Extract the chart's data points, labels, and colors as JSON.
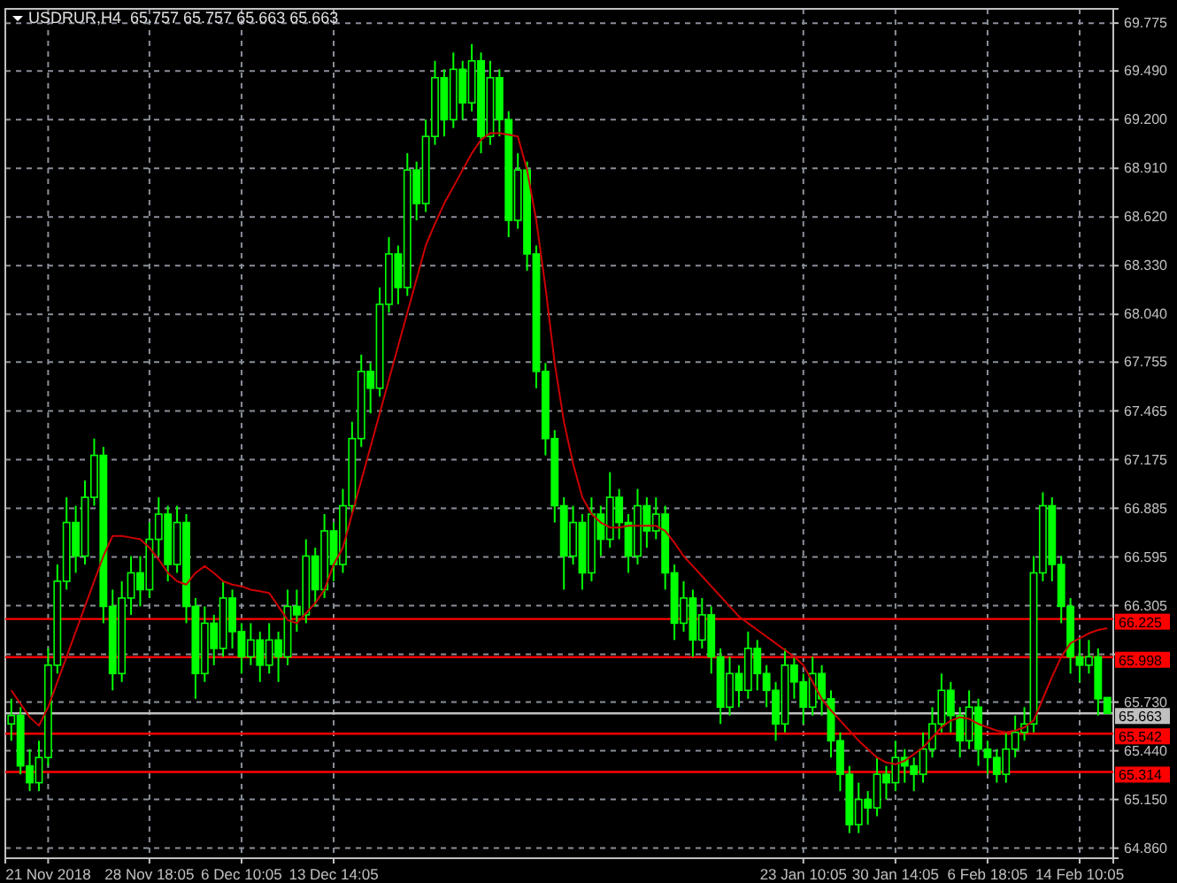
{
  "chart_data": {
    "type": "candlestick",
    "title": "USDRUR,H4  65.757 65.757 65.663 65.663",
    "color": "#00ff00",
    "grid": true,
    "categories": [
      null,
      null,
      null,
      null,
      "21 Nov 2018",
      null,
      null,
      null,
      null,
      null,
      null,
      null,
      null,
      null,
      null,
      "28 Nov 18:05",
      null,
      null,
      null,
      null,
      null,
      null,
      null,
      null,
      null,
      "6 Dec 10:05",
      null,
      null,
      null,
      null,
      null,
      null,
      null,
      null,
      null,
      "13 Dec 14:05",
      null,
      null,
      null,
      null,
      null,
      null,
      null,
      null,
      null,
      null,
      null,
      null,
      null,
      null,
      null,
      null,
      null,
      null,
      null,
      null,
      null,
      null,
      null,
      null,
      null,
      null,
      null,
      null,
      null,
      null,
      null,
      null,
      null,
      null,
      null,
      null,
      null,
      null,
      null,
      null,
      null,
      null,
      null,
      null,
      null,
      null,
      null,
      null,
      null,
      null,
      "23 Jan 10:05",
      null,
      null,
      null,
      null,
      null,
      null,
      null,
      null,
      null,
      "30 Jan 14:05",
      null,
      null,
      null,
      null,
      null,
      null,
      null,
      null,
      null,
      "6 Feb 18:05",
      null,
      null,
      null,
      null,
      null,
      null,
      null,
      null,
      null,
      "14 Feb 10:05",
      null,
      null,
      null
    ],
    "ohlc": [
      [
        65.6,
        65.75,
        65.5,
        65.65
      ],
      [
        65.65,
        65.7,
        65.3,
        65.35
      ],
      [
        65.35,
        65.45,
        65.2,
        65.25
      ],
      [
        65.25,
        65.5,
        65.2,
        65.4
      ],
      [
        65.4,
        66.05,
        65.35,
        65.95
      ],
      [
        65.95,
        66.55,
        65.9,
        66.45
      ],
      [
        66.45,
        66.95,
        66.4,
        66.8
      ],
      [
        66.8,
        66.9,
        66.5,
        66.6
      ],
      [
        66.6,
        67.05,
        66.55,
        66.95
      ],
      [
        66.95,
        67.3,
        66.9,
        67.2
      ],
      [
        67.2,
        67.25,
        66.2,
        66.3
      ],
      [
        66.3,
        66.4,
        65.8,
        65.9
      ],
      [
        65.9,
        66.45,
        65.85,
        66.35
      ],
      [
        66.35,
        66.6,
        66.25,
        66.5
      ],
      [
        66.5,
        66.6,
        66.3,
        66.4
      ],
      [
        66.4,
        66.8,
        66.35,
        66.7
      ],
      [
        66.7,
        66.95,
        66.6,
        66.85
      ],
      [
        66.85,
        66.9,
        66.45,
        66.55
      ],
      [
        66.55,
        66.9,
        66.5,
        66.8
      ],
      [
        66.8,
        66.85,
        66.2,
        66.3
      ],
      [
        66.3,
        66.35,
        65.75,
        65.9
      ],
      [
        65.9,
        66.3,
        65.85,
        66.2
      ],
      [
        66.2,
        66.25,
        65.95,
        66.05
      ],
      [
        66.05,
        66.45,
        66.0,
        66.35
      ],
      [
        66.35,
        66.4,
        66.05,
        66.15
      ],
      [
        66.15,
        66.2,
        65.9,
        66.0
      ],
      [
        66.0,
        66.2,
        65.95,
        66.1
      ],
      [
        66.1,
        66.15,
        65.85,
        65.95
      ],
      [
        65.95,
        66.2,
        65.9,
        66.1
      ],
      [
        66.1,
        66.15,
        65.85,
        66.0
      ],
      [
        66.0,
        66.4,
        65.95,
        66.3
      ],
      [
        66.3,
        66.4,
        66.15,
        66.25
      ],
      [
        66.25,
        66.7,
        66.2,
        66.6
      ],
      [
        66.6,
        66.65,
        66.3,
        66.4
      ],
      [
        66.4,
        66.85,
        66.35,
        66.75
      ],
      [
        66.75,
        66.8,
        66.45,
        66.55
      ],
      [
        66.55,
        67.0,
        66.5,
        66.9
      ],
      [
        66.9,
        67.4,
        66.85,
        67.3
      ],
      [
        67.3,
        67.8,
        67.25,
        67.7
      ],
      [
        67.7,
        67.75,
        67.45,
        67.6
      ],
      [
        67.6,
        68.2,
        67.55,
        68.1
      ],
      [
        68.1,
        68.5,
        68.05,
        68.4
      ],
      [
        68.4,
        68.45,
        68.1,
        68.2
      ],
      [
        68.2,
        69.0,
        68.15,
        68.9
      ],
      [
        68.9,
        68.95,
        68.6,
        68.7
      ],
      [
        68.7,
        69.2,
        68.65,
        69.1
      ],
      [
        69.1,
        69.55,
        69.05,
        69.45
      ],
      [
        69.45,
        69.5,
        69.1,
        69.2
      ],
      [
        69.2,
        69.6,
        69.15,
        69.5
      ],
      [
        69.5,
        69.55,
        69.2,
        69.3
      ],
      [
        69.3,
        69.65,
        69.25,
        69.55
      ],
      [
        69.55,
        69.6,
        69.0,
        69.1
      ],
      [
        69.1,
        69.55,
        69.05,
        69.45
      ],
      [
        69.45,
        69.5,
        69.1,
        69.2
      ],
      [
        69.2,
        69.25,
        68.5,
        68.6
      ],
      [
        68.6,
        69.0,
        68.55,
        68.9
      ],
      [
        68.9,
        68.95,
        68.3,
        68.4
      ],
      [
        68.4,
        68.45,
        67.6,
        67.7
      ],
      [
        67.7,
        67.75,
        67.2,
        67.3
      ],
      [
        67.3,
        67.35,
        66.8,
        66.9
      ],
      [
        66.9,
        66.95,
        66.4,
        66.6
      ],
      [
        66.6,
        66.9,
        66.55,
        66.8
      ],
      [
        66.8,
        66.85,
        66.4,
        66.5
      ],
      [
        66.5,
        66.95,
        66.45,
        66.85
      ],
      [
        66.85,
        66.9,
        66.6,
        66.7
      ],
      [
        66.7,
        67.1,
        66.65,
        66.95
      ],
      [
        66.95,
        67.0,
        66.7,
        66.8
      ],
      [
        66.8,
        66.85,
        66.5,
        66.6
      ],
      [
        66.6,
        67.0,
        66.55,
        66.9
      ],
      [
        66.9,
        66.95,
        66.65,
        66.75
      ],
      [
        66.75,
        66.95,
        66.7,
        66.85
      ],
      [
        66.85,
        66.9,
        66.4,
        66.5
      ],
      [
        66.5,
        66.55,
        66.1,
        66.2
      ],
      [
        66.2,
        66.45,
        66.15,
        66.35
      ],
      [
        66.35,
        66.4,
        66.0,
        66.1
      ],
      [
        66.1,
        66.35,
        66.05,
        66.25
      ],
      [
        66.25,
        66.3,
        65.9,
        66.0
      ],
      [
        66.0,
        66.05,
        65.6,
        65.7
      ],
      [
        65.7,
        66.0,
        65.65,
        65.9
      ],
      [
        65.9,
        65.95,
        65.7,
        65.8
      ],
      [
        65.8,
        66.15,
        65.75,
        66.05
      ],
      [
        66.05,
        66.1,
        65.8,
        65.9
      ],
      [
        65.9,
        65.95,
        65.7,
        65.8
      ],
      [
        65.8,
        65.85,
        65.5,
        65.6
      ],
      [
        65.6,
        66.05,
        65.55,
        65.95
      ],
      [
        65.95,
        66.0,
        65.75,
        65.85
      ],
      [
        65.85,
        65.9,
        65.6,
        65.7
      ],
      [
        65.7,
        66.0,
        65.65,
        65.9
      ],
      [
        65.9,
        65.95,
        65.65,
        65.75
      ],
      [
        65.75,
        65.8,
        65.4,
        65.5
      ],
      [
        65.5,
        65.55,
        65.2,
        65.3
      ],
      [
        65.3,
        65.35,
        64.95,
        65.0
      ],
      [
        65.0,
        65.25,
        64.95,
        65.15
      ],
      [
        65.15,
        65.2,
        65.0,
        65.1
      ],
      [
        65.1,
        65.4,
        65.05,
        65.3
      ],
      [
        65.3,
        65.35,
        65.15,
        65.25
      ],
      [
        65.25,
        65.5,
        65.2,
        65.4
      ],
      [
        65.4,
        65.45,
        65.25,
        65.35
      ],
      [
        65.35,
        65.4,
        65.2,
        65.3
      ],
      [
        65.3,
        65.55,
        65.25,
        65.45
      ],
      [
        65.45,
        65.7,
        65.4,
        65.6
      ],
      [
        65.6,
        65.9,
        65.55,
        65.8
      ],
      [
        65.8,
        65.85,
        65.55,
        65.65
      ],
      [
        65.65,
        65.7,
        65.4,
        65.5
      ],
      [
        65.5,
        65.8,
        65.45,
        65.7
      ],
      [
        65.7,
        65.75,
        65.35,
        65.45
      ],
      [
        65.45,
        65.5,
        65.3,
        65.4
      ],
      [
        65.4,
        65.45,
        65.25,
        65.3
      ],
      [
        65.3,
        65.55,
        65.25,
        65.45
      ],
      [
        65.45,
        65.65,
        65.4,
        65.55
      ],
      [
        65.55,
        65.7,
        65.5,
        65.6
      ],
      [
        65.6,
        66.6,
        65.55,
        66.5
      ],
      [
        66.5,
        66.98,
        66.45,
        66.9
      ],
      [
        66.9,
        66.95,
        66.45,
        66.55
      ],
      [
        66.55,
        66.6,
        66.2,
        66.3
      ],
      [
        66.3,
        66.35,
        65.9,
        66.0
      ],
      [
        66.0,
        66.1,
        65.85,
        65.95
      ],
      [
        65.95,
        66.1,
        65.9,
        66.0
      ],
      [
        66.0,
        66.05,
        65.65,
        65.75
      ],
      [
        65.757,
        65.757,
        65.663,
        65.663
      ]
    ],
    "series": [
      {
        "type": "line",
        "color": "#cc0000",
        "values": [
          65.8,
          65.72,
          65.64,
          65.59,
          65.7,
          65.85,
          66.0,
          66.15,
          66.3,
          66.45,
          66.6,
          66.72,
          66.72,
          66.71,
          66.7,
          66.65,
          66.58,
          66.5,
          66.45,
          66.43,
          66.5,
          66.54,
          66.5,
          66.45,
          66.43,
          66.42,
          66.4,
          66.39,
          66.38,
          66.3,
          66.22,
          66.2,
          66.26,
          66.32,
          66.4,
          66.55,
          66.65,
          66.85,
          67.05,
          67.25,
          67.45,
          67.65,
          67.85,
          68.05,
          68.25,
          68.45,
          68.58,
          68.7,
          68.8,
          68.9,
          69.0,
          69.08,
          69.12,
          69.12,
          69.11,
          69.1,
          68.9,
          68.6,
          68.2,
          67.75,
          67.4,
          67.15,
          66.95,
          66.85,
          66.8,
          66.77,
          66.77,
          66.78,
          66.78,
          66.78,
          66.78,
          66.75,
          66.68,
          66.6,
          66.54,
          66.48,
          66.42,
          66.36,
          66.3,
          66.24,
          66.2,
          66.16,
          66.12,
          66.08,
          66.04,
          66.0,
          65.95,
          65.85,
          65.75,
          65.68,
          65.62,
          65.56,
          65.5,
          65.45,
          65.4,
          65.37,
          65.36,
          65.38,
          65.42,
          65.46,
          65.52,
          65.58,
          65.62,
          65.64,
          65.63,
          65.6,
          65.58,
          65.56,
          65.55,
          65.56,
          65.58,
          65.62,
          65.75,
          65.88,
          66.0,
          66.08,
          66.11,
          66.14,
          66.16,
          66.17
        ]
      }
    ],
    "ylim": [
      64.8,
      69.86
    ],
    "yticks": [
      69.775,
      {
        "value": 69.49,
        "label": "69.490"
      },
      {
        "value": 69.2,
        "label": "69.200"
      },
      {
        "value": 68.91,
        "label": "68.910"
      },
      {
        "value": 68.62,
        "label": "68.620"
      },
      {
        "value": 68.33,
        "label": "68.330"
      },
      {
        "value": 68.04,
        "label": "68.040"
      },
      67.755,
      67.465,
      67.175,
      66.885,
      66.595,
      66.305,
      {
        "value": 66.015,
        "label": null
      },
      {
        "value": 65.73,
        "label": "65.730"
      },
      {
        "value": 65.44,
        "label": "65.440"
      },
      {
        "value": 65.15,
        "label": "65.150"
      },
      {
        "value": 64.86,
        "label": "64.860"
      }
    ],
    "ref_lines": [
      {
        "axis": "y",
        "value": 66.225,
        "label": "66.225",
        "color": "#ff0000"
      },
      {
        "axis": "y",
        "value": 65.998,
        "label": "65.998",
        "color": "#ff0000"
      },
      {
        "axis": "y",
        "value": 65.663,
        "label": "65.663",
        "color": "#c0c0c0"
      },
      {
        "axis": "y",
        "value": 65.542,
        "label": "65.542",
        "color": "#ff0000"
      },
      {
        "axis": "y",
        "value": 65.314,
        "label": "65.314",
        "color": "#ff0000"
      }
    ]
  }
}
